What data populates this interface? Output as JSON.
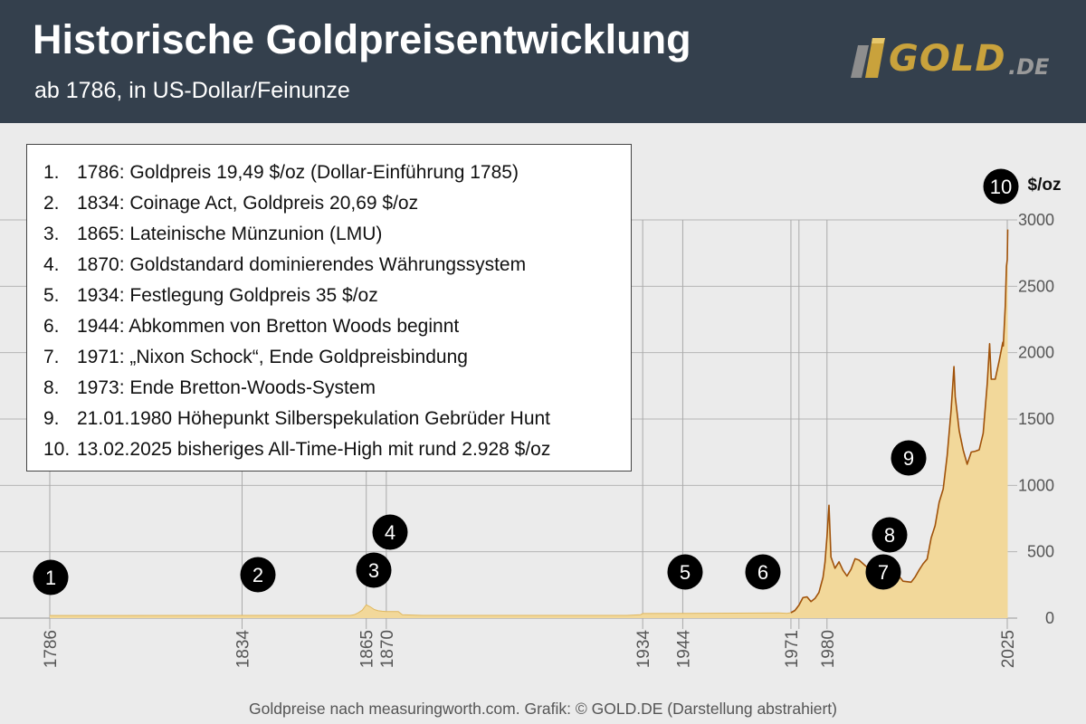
{
  "header": {
    "title": "Historische Goldpreisentwicklung",
    "subtitle": "ab 1786, in US-Dollar/Feinunze",
    "logo_main": "GOLD",
    "logo_suffix": ".DE"
  },
  "legend": [
    {
      "num": "1.",
      "text": "1786: Goldpreis 19,49 $/oz (Dollar-Einführung 1785)"
    },
    {
      "num": "2.",
      "text": "1834: Coinage Act, Goldpreis 20,69 $/oz"
    },
    {
      "num": "3.",
      "text": "1865: Lateinische Münzunion (LMU)"
    },
    {
      "num": "4.",
      "text": "1870: Goldstandard dominierendes Währungssystem"
    },
    {
      "num": "5.",
      "text": "1934: Festlegung Goldpreis 35 $/oz"
    },
    {
      "num": "6.",
      "text": "1944: Abkommen von Bretton Woods beginnt"
    },
    {
      "num": "7.",
      "text": "1971: „Nixon Schock“, Ende Goldpreisbindung"
    },
    {
      "num": "8.",
      "text": "1973: Ende Bretton-Woods-System"
    },
    {
      "num": "9.",
      "text": "21.01.1980 Höhepunkt Silberspekulation Gebrüder Hunt"
    },
    {
      "num": "10.",
      "text": "13.02.2025 bisheriges All-Time-High mit rund 2.928 $/oz"
    }
  ],
  "footer": "Goldpreise nach measuringworth.com.  Grafik: © GOLD.DE (Darstellung abstrahiert)",
  "colors": {
    "header_bg": "#34404d",
    "area_fill": "#f2d89a",
    "line": "#a0520a",
    "background": "#ebebeb",
    "grid": "#b5b5b5",
    "marker_bg": "#000000",
    "logo_gold": "#c9a23c"
  },
  "chart_data": {
    "type": "area",
    "title": "Historische Goldpreisentwicklung",
    "ylabel": "$/oz",
    "ylim": [
      0,
      3000
    ],
    "y_ticks": [
      0,
      500,
      1000,
      1500,
      2000,
      2500,
      3000
    ],
    "x_ticks": [
      1786,
      1834,
      1865,
      1870,
      1934,
      1944,
      1971,
      1973,
      1980,
      2025
    ],
    "x_tick_labels": [
      "1786",
      "1834",
      "1865",
      "1870",
      "1934",
      "1944",
      "1971",
      "",
      "1980",
      "2025"
    ],
    "grid": true,
    "series": [
      {
        "x": [
          1786,
          1834,
          1834.2,
          1861,
          1862,
          1863,
          1864,
          1865,
          1866,
          1867,
          1868,
          1869,
          1870,
          1872,
          1873,
          1874,
          1879,
          1930,
          1933.5,
          1934,
          1968,
          1970,
          1971,
          1972,
          1973,
          1974,
          1975,
          1976,
          1977,
          1978,
          1979,
          1979.5,
          1980,
          1980.5,
          1981,
          1982,
          1983,
          1984,
          1985,
          1986,
          1987,
          1988,
          1990,
          1993,
          1996,
          1999,
          2001,
          2002,
          2003,
          2004,
          2005,
          2006,
          2007,
          2008,
          2009,
          2010,
          2011,
          2011.7,
          2012,
          2013,
          2014,
          2015,
          2016,
          2017,
          2018,
          2019,
          2020,
          2020.6,
          2021,
          2022,
          2023,
          2023.9,
          2024,
          2024.5,
          2024.8,
          2025,
          2025.12
        ],
        "y": [
          19.49,
          20.67,
          20.69,
          20.69,
          25,
          40,
          60,
          100,
          85,
          65,
          55,
          52,
          50,
          50,
          50,
          25,
          20.67,
          20.67,
          26,
          35,
          39,
          36,
          41,
          58,
          97,
          154,
          160,
          125,
          148,
          193,
          307,
          420,
          615,
          850,
          460,
          376,
          424,
          360,
          317,
          368,
          447,
          437,
          383,
          360,
          388,
          278,
          271,
          310,
          363,
          409,
          445,
          604,
          697,
          872,
          972,
          1225,
          1572,
          1895,
          1669,
          1411,
          1266,
          1160,
          1251,
          1257,
          1268,
          1393,
          1770,
          2067,
          1800,
          1800,
          1940,
          2078,
          2050,
          2350,
          2650,
          2700,
          2928
        ]
      }
    ],
    "events": [
      {
        "label": "1",
        "x": 1786
      },
      {
        "label": "2",
        "x": 1834
      },
      {
        "label": "3",
        "x": 1865
      },
      {
        "label": "4",
        "x": 1870
      },
      {
        "label": "5",
        "x": 1934
      },
      {
        "label": "6",
        "x": 1944
      },
      {
        "label": "7",
        "x": 1971
      },
      {
        "label": "8",
        "x": 1973
      },
      {
        "label": "9",
        "x": 1980
      },
      {
        "label": "10",
        "x": 2025
      }
    ]
  }
}
